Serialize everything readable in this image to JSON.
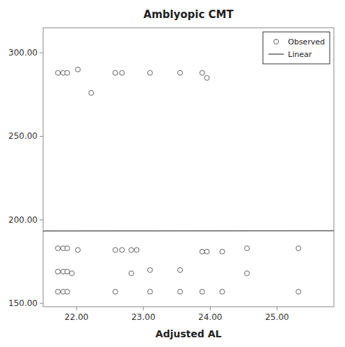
{
  "chart_data": {
    "type": "scatter",
    "title": "Amblyopic CMT",
    "x_label": "Adjusted AL",
    "xlim": [
      21.5,
      25.85
    ],
    "ylim": [
      148,
      315
    ],
    "xticks": [
      {
        "value": 22.0,
        "label": "22.00"
      },
      {
        "value": 23.0,
        "label": "23.00"
      },
      {
        "value": 24.0,
        "label": "24.00"
      },
      {
        "value": 25.0,
        "label": "25.00"
      }
    ],
    "yticks": [
      {
        "value": 150.0,
        "label": "150.00"
      },
      {
        "value": 200.0,
        "label": "200.00"
      },
      {
        "value": 250.0,
        "label": "250.00"
      },
      {
        "value": 300.0,
        "label": "300.00"
      }
    ],
    "grid": false,
    "legend": "upper right",
    "series": [
      {
        "name": "Observed",
        "type": "scatter",
        "marker": "circle",
        "color": "#606060",
        "x": [
          21.72,
          21.8,
          21.86,
          22.02,
          21.72,
          21.8,
          21.86,
          22.02,
          21.72,
          21.8,
          21.86,
          21.93,
          21.72,
          21.8,
          21.86,
          22.22,
          22.58,
          22.68,
          22.58,
          22.68,
          22.58,
          22.82,
          22.9,
          22.82,
          23.1,
          23.1,
          23.1,
          23.55,
          23.55,
          23.55,
          23.88,
          23.95,
          23.88,
          23.95,
          23.88,
          24.18,
          24.18,
          24.55,
          24.55,
          25.32,
          25.32
        ],
        "values": [
          288,
          288,
          288,
          290,
          183,
          183,
          183,
          182,
          169,
          169,
          169,
          168,
          157,
          157,
          157,
          276,
          288,
          288,
          182,
          182,
          157,
          182,
          182,
          168,
          288,
          170,
          157,
          288,
          170,
          157,
          288,
          285,
          181,
          181,
          157,
          181,
          157,
          183,
          168,
          183,
          157
        ]
      },
      {
        "name": "Linear",
        "type": "line",
        "line_style": "solid",
        "color": "#606060",
        "x": [
          21.5,
          25.85
        ],
        "values": [
          193.4365,
          193.48435
        ]
      }
    ]
  }
}
